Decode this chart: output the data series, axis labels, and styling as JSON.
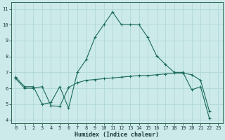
{
  "xlabel": "Humidex (Indice chaleur)",
  "bg_color": "#cceaea",
  "grid_color": "#b0d8d8",
  "line_color": "#1a6b5a",
  "xlim": [
    -0.5,
    23.5
  ],
  "ylim": [
    3.8,
    11.4
  ],
  "yticks": [
    4,
    5,
    6,
    7,
    8,
    9,
    10,
    11
  ],
  "xticks": [
    0,
    1,
    2,
    3,
    4,
    5,
    6,
    7,
    8,
    9,
    10,
    11,
    12,
    13,
    14,
    15,
    16,
    17,
    18,
    19,
    20,
    21,
    22,
    23
  ],
  "line1_x": [
    0,
    1,
    2,
    3,
    4,
    5,
    6,
    7,
    8,
    9,
    10,
    11,
    12,
    13,
    14,
    15,
    16,
    17,
    18,
    19,
    20,
    21,
    22
  ],
  "line1_y": [
    6.7,
    6.1,
    6.1,
    5.0,
    5.1,
    6.1,
    4.75,
    7.0,
    7.8,
    9.2,
    10.0,
    10.8,
    10.0,
    10.0,
    10.0,
    9.2,
    8.05,
    7.5,
    7.0,
    7.0,
    5.9,
    6.1,
    4.1
  ],
  "line2_x": [
    0,
    1,
    2,
    3,
    4,
    5,
    6,
    7,
    8,
    9,
    10,
    11,
    12,
    13,
    14,
    15,
    16,
    17,
    18,
    19,
    20,
    21,
    22
  ],
  "line2_y": [
    6.6,
    6.0,
    6.0,
    6.1,
    4.9,
    4.85,
    6.05,
    6.35,
    6.5,
    6.55,
    6.6,
    6.65,
    6.7,
    6.75,
    6.8,
    6.8,
    6.85,
    6.9,
    6.95,
    6.95,
    6.85,
    6.5,
    4.55
  ]
}
